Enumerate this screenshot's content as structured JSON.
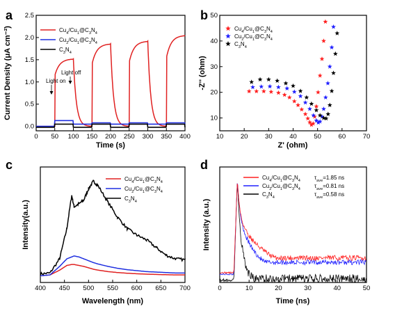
{
  "chart_data": [
    {
      "panel_label": "a",
      "type": "line",
      "xlabel": "Time (s)",
      "ylabel": "Current Density (μA cm⁻²)",
      "xlim": [
        0,
        400
      ],
      "ylim": [
        -0.1,
        2.5
      ],
      "x_ticks": [
        "0",
        "50",
        "100",
        "150",
        "200",
        "250",
        "300",
        "350",
        "400"
      ],
      "y_ticks": [
        "0.0",
        "0.5",
        "1.0",
        "1.5",
        "2.0",
        "2.5"
      ],
      "light_on_s": [
        50,
        150,
        250,
        350
      ],
      "light_off_s": [
        100,
        200,
        300,
        400
      ],
      "annotations": [
        "Light on",
        "Light off"
      ],
      "series": [
        {
          "name": "Cu4/Cu1@C3N4",
          "color": "#e02020",
          "dark_value": 0.0,
          "light_value_start": 1.15,
          "light_value_end": 2.05,
          "cycle_peaks": [
            1.52,
            1.86,
            1.92,
            2.05
          ]
        },
        {
          "name": "Cu2/Cu1@C3N4",
          "color": "#1f2fe0",
          "dark_value": 0.05,
          "light_value": 0.14
        },
        {
          "name": "C3N4",
          "color": "#000000",
          "dark_value": -0.02,
          "light_value": 0.06
        }
      ],
      "grid": false,
      "legend": "top-left"
    },
    {
      "panel_label": "b",
      "type": "scatter",
      "xlabel": "Z' (ohm)",
      "ylabel": "-Z'' (ohm)",
      "xlim": [
        10,
        70
      ],
      "ylim": [
        5,
        50
      ],
      "x_ticks": [
        "10",
        "20",
        "30",
        "40",
        "50",
        "60",
        "70"
      ],
      "y_ticks": [
        "10",
        "20",
        "30",
        "40",
        "50"
      ],
      "marker": "star",
      "series": [
        {
          "name": "Cu4/Cu1@C3N4",
          "color": "#ff2020",
          "x": [
            22,
            25,
            28,
            31,
            34,
            36.5,
            38.5,
            40.5,
            42,
            43.5,
            45,
            46,
            46.8,
            47.5,
            48.2,
            48.8,
            49.5,
            50.2,
            51,
            51.8,
            52.5,
            53.2
          ],
          "y": [
            20.4,
            20.4,
            20.4,
            20.2,
            19.8,
            19,
            18,
            16.5,
            15,
            13.3,
            11.5,
            9.8,
            8.3,
            7.3,
            7.8,
            10.5,
            14.5,
            20,
            26.5,
            33,
            40,
            47.5
          ]
        },
        {
          "name": "Cu2/Cu1@C3N4",
          "color": "#2020ff",
          "x": [
            23.5,
            27,
            30.5,
            34,
            37.5,
            40.5,
            43,
            45,
            46.8,
            48.3,
            49.5,
            50.3,
            51,
            51.8,
            52.5,
            53.3,
            54.2,
            55,
            55.8,
            56.5
          ],
          "y": [
            22,
            22.2,
            22.3,
            22,
            21.5,
            20.2,
            18.5,
            16,
            13.5,
            11,
            9,
            8.2,
            8.6,
            10.5,
            13.5,
            18,
            23.5,
            30,
            37.5,
            45.5
          ]
        },
        {
          "name": "C3N4",
          "color": "#000000",
          "x": [
            23,
            26.5,
            30,
            33.5,
            37,
            40,
            43,
            45.5,
            47.5,
            49.5,
            51,
            52.5,
            53.5,
            54.3,
            55,
            55.8,
            56.5,
            57.3,
            58
          ],
          "y": [
            24,
            25,
            25,
            24.5,
            23.5,
            22.5,
            20.5,
            18,
            15.5,
            13,
            11,
            10,
            9.8,
            11.5,
            15,
            20.5,
            27.5,
            35,
            43
          ]
        }
      ],
      "grid": false,
      "legend": "top-left"
    },
    {
      "panel_label": "c",
      "type": "line",
      "xlabel": "Wavelength (nm)",
      "ylabel": "Intensity(a.u.)",
      "xlim": [
        400,
        700
      ],
      "x_ticks": [
        "400",
        "450",
        "500",
        "550",
        "600",
        "650",
        "700"
      ],
      "y_axis_values_shown": false,
      "x": [
        400,
        420,
        440,
        455,
        465,
        470,
        480,
        490,
        500,
        510,
        520,
        540,
        560,
        580,
        600,
        620,
        640,
        660,
        680,
        700
      ],
      "series": [
        {
          "name": "Cu4/Cu1@C3N4",
          "color": "#e02020",
          "values": [
            0,
            0.01,
            0.06,
            0.11,
            0.12,
            0.12,
            0.11,
            0.1,
            0.085,
            0.07,
            0.06,
            0.045,
            0.035,
            0.028,
            0.022,
            0.018,
            0.015,
            0.012,
            0.01,
            0.01
          ]
        },
        {
          "name": "Cu2/Cu1@C3N4",
          "color": "#1f2fe0",
          "values": [
            0,
            0.01,
            0.1,
            0.18,
            0.2,
            0.21,
            0.2,
            0.18,
            0.16,
            0.14,
            0.125,
            0.1,
            0.08,
            0.065,
            0.055,
            0.045,
            0.04,
            0.035,
            0.03,
            0.03
          ]
        },
        {
          "name": "C3N4",
          "color": "#000000",
          "values": [
            0.02,
            0.03,
            0.18,
            0.5,
            0.85,
            0.73,
            0.76,
            0.8,
            0.92,
            1.0,
            0.95,
            0.78,
            0.62,
            0.5,
            0.43,
            0.38,
            0.3,
            0.22,
            0.18,
            0.17
          ]
        }
      ],
      "grid": false,
      "legend": "top-right"
    },
    {
      "panel_label": "d",
      "type": "line",
      "xlabel": "Time (ns)",
      "ylabel": "Intensity (a.u.)",
      "xlim": [
        0,
        50
      ],
      "x_ticks": [
        "0",
        "10",
        "20",
        "30",
        "40",
        "50"
      ],
      "y_axis_values_shown": false,
      "peak_time_ns": 6,
      "series": [
        {
          "name": "Cu4/Cu1@C3N4",
          "color": "#ff2020",
          "tau_ave_ns": 1.85,
          "tau_label": "τave=1.85 ns",
          "baseline": 0.34,
          "tail_amp": 0.6,
          "decay_ns": 10
        },
        {
          "name": "Cu2/Cu1@C3N4",
          "color": "#2020ff",
          "tau_ave_ns": 0.81,
          "tau_label": "τave=0.81 ns",
          "baseline": 0.28,
          "tail_amp": 0.65,
          "decay_ns": 6
        },
        {
          "name": "C3N4",
          "color": "#000000",
          "tau_ave_ns": 0.58,
          "tau_label": "τave=0.58 ns",
          "baseline": 0.05,
          "tail_amp": 0.9,
          "decay_ns": 1.6
        }
      ],
      "grid": false,
      "legend": "top-right"
    }
  ]
}
